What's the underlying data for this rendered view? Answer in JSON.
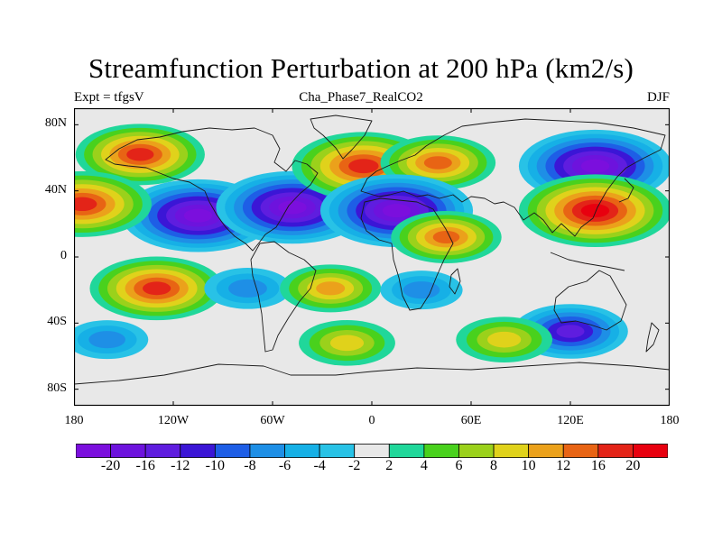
{
  "title": "Streamfunction Perturbation at 200 hPa (km2/s)",
  "left_string": "Expt = tfgsV",
  "center_string": "Cha_Phase7_RealCO2",
  "right_string": "DJF",
  "y_axis": {
    "ticks": [
      {
        "label": "80N",
        "lat": 80
      },
      {
        "label": "40N",
        "lat": 40
      },
      {
        "label": "0",
        "lat": 0
      },
      {
        "label": "40S",
        "lat": -40
      },
      {
        "label": "80S",
        "lat": -80
      }
    ]
  },
  "x_axis": {
    "ticks": [
      {
        "label": "180",
        "lon": -180
      },
      {
        "label": "120W",
        "lon": -120
      },
      {
        "label": "60W",
        "lon": -60
      },
      {
        "label": "0",
        "lon": 0
      },
      {
        "label": "60E",
        "lon": 60
      },
      {
        "label": "120E",
        "lon": 120
      },
      {
        "label": "180",
        "lon": 180
      }
    ]
  },
  "chart_data": {
    "type": "heatmap",
    "title": "Streamfunction Perturbation at 200 hPa (km2/s)",
    "xlim": [
      -180,
      180
    ],
    "ylim": [
      -90,
      90
    ],
    "levels": [
      -20,
      -16,
      -12,
      -10,
      -8,
      -6,
      -4,
      -2,
      2,
      4,
      6,
      8,
      10,
      12,
      16,
      20
    ],
    "colorbar_labels": [
      "-20",
      "-16",
      "-12",
      "-10",
      "-8",
      "-6",
      "-4",
      "-2",
      "2",
      "4",
      "6",
      "8",
      "10",
      "12",
      "16",
      "20"
    ],
    "colors": [
      "#7b0fdd",
      "#6d13dd",
      "#5f1ddf",
      "#3b16d6",
      "#1e5ee6",
      "#1e8fe6",
      "#16b0e6",
      "#28c2e6",
      "#e8e8e8",
      "#20d79a",
      "#49d11d",
      "#9bd11b",
      "#e0d21b",
      "#eba11b",
      "#e86414",
      "#e32418",
      "#e8000f"
    ],
    "approximate_centers": [
      {
        "lon": -140,
        "lat": 62,
        "value": 16
      },
      {
        "lon": -105,
        "lat": 25,
        "value": -21
      },
      {
        "lon": -48,
        "lat": 30,
        "value": -21
      },
      {
        "lon": -5,
        "lat": 55,
        "value": 19
      },
      {
        "lon": 40,
        "lat": 57,
        "value": 13
      },
      {
        "lon": 15,
        "lat": 28,
        "value": -21
      },
      {
        "lon": 45,
        "lat": 12,
        "value": 12
      },
      {
        "lon": 135,
        "lat": 55,
        "value": -21
      },
      {
        "lon": 135,
        "lat": 28,
        "value": 21
      },
      {
        "lon": -175,
        "lat": 32,
        "value": 18
      },
      {
        "lon": -130,
        "lat": -19,
        "value": 17
      },
      {
        "lon": -75,
        "lat": -19,
        "value": -7
      },
      {
        "lon": -25,
        "lat": -19,
        "value": 10
      },
      {
        "lon": 30,
        "lat": -20,
        "value": -6
      },
      {
        "lon": 120,
        "lat": -45,
        "value": -13
      },
      {
        "lon": -15,
        "lat": -52,
        "value": 9
      },
      {
        "lon": 80,
        "lat": -50,
        "value": 9
      },
      {
        "lon": -160,
        "lat": -50,
        "value": -6
      }
    ]
  }
}
